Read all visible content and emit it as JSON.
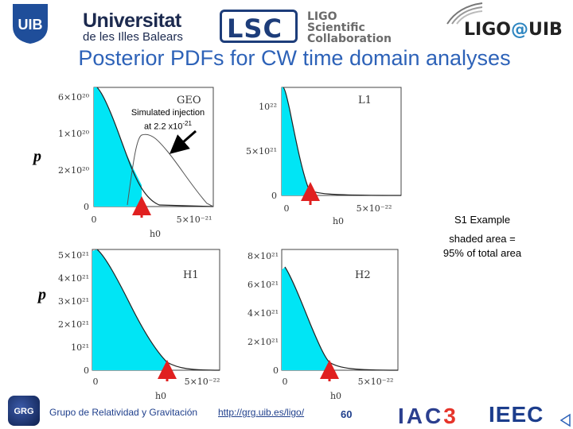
{
  "header": {
    "uib_mark": "UIB",
    "uib_name_line1": "Universitat",
    "uib_name_line2": "de les Illes Balears",
    "lsc_mark": "LSC",
    "lsc_text": [
      "LIGO",
      "Scientific",
      "Collaboration"
    ],
    "ligouib_left": "LIGO",
    "ligouib_at": "@",
    "ligouib_right": "UIB"
  },
  "title": "Posterior PDFs for CW time domain analyses",
  "side": {
    "p_top": "p",
    "p_bottom": "p",
    "example": "S1 Example",
    "shaded_line1": "shaded area =",
    "shaded_line2": "95% of total area"
  },
  "annotation": {
    "line1": "Simulated injection",
    "line2": "at 2.2 x10",
    "exponent": "-21"
  },
  "colors": {
    "shade": "#00e5f5",
    "title": "#2d62b8",
    "arrow_red": "#e02020"
  },
  "chart_data": [
    {
      "type": "area",
      "detector_label": "GEO",
      "xlabel": "h0",
      "x_ticks": [
        "0",
        "5×10⁻²¹"
      ],
      "y_ticks": [
        "0",
        "2×10²⁰",
        "1×10²⁰",
        "6×10²⁰"
      ],
      "shaded_fraction": 0.95,
      "curves": [
        "posterior",
        "simulated-injection"
      ]
    },
    {
      "type": "area",
      "detector_label": "L1",
      "xlabel": "h0",
      "x_ticks": [
        "0",
        "5×10⁻²²"
      ],
      "y_ticks": [
        "0",
        "5×10²¹",
        "10²²"
      ],
      "shaded_fraction": 0.95
    },
    {
      "type": "area",
      "detector_label": "H1",
      "xlabel": "h0",
      "x_ticks": [
        "0",
        "5×10⁻²²"
      ],
      "y_ticks": [
        "0",
        "10²¹",
        "2×10²¹",
        "3×10²¹",
        "4×10²¹",
        "5×10²¹"
      ],
      "shaded_fraction": 0.95
    },
    {
      "type": "area",
      "detector_label": "H2",
      "xlabel": "h0",
      "x_ticks": [
        "0",
        "5×10⁻²²"
      ],
      "y_ticks": [
        "0",
        "2×10²¹",
        "4×10²¹",
        "6×10²¹",
        "8×10²¹"
      ],
      "shaded_fraction": 0.95
    }
  ],
  "footer": {
    "grg_mark": "GRG",
    "group": "Grupo de Relatividad y Gravitación",
    "link": "http://grg.uib.es/ligo/",
    "slide_number": "60",
    "iac_left": "IAC",
    "iac_right": "3",
    "ieec": "IEEC"
  }
}
